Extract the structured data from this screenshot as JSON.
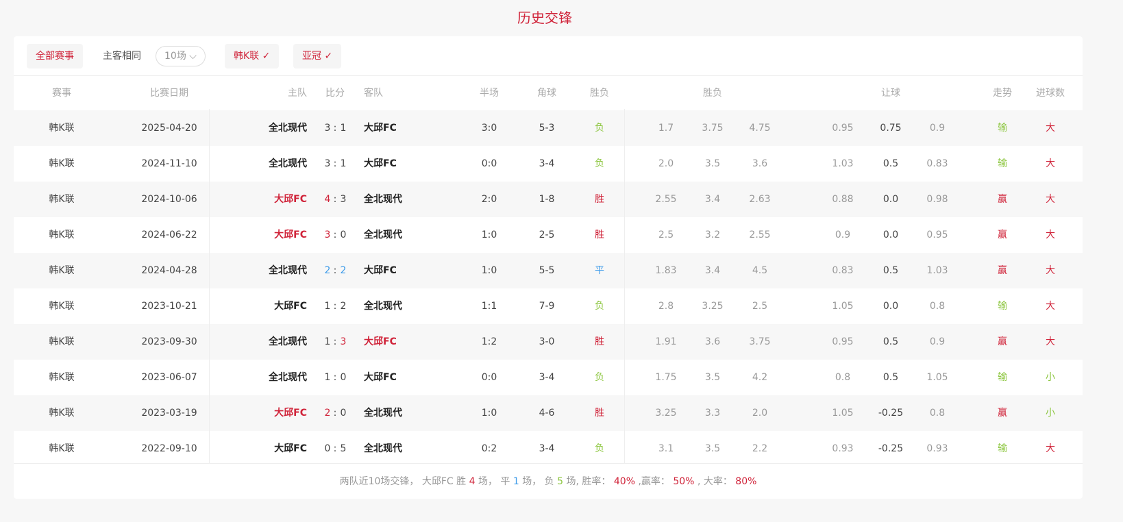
{
  "title": "历史交锋",
  "filters": {
    "all": "全部赛事",
    "same_home_away": "主客相同",
    "count_select": "10场",
    "league1": "韩K联 ✓",
    "league2": "亚冠 ✓"
  },
  "headers": {
    "league": "赛事",
    "date": "比赛日期",
    "home": "主队",
    "score": "比分",
    "away": "客队",
    "half": "半场",
    "corner": "角球",
    "result": "胜负",
    "odds_wdl": "胜负",
    "handicap": "让球",
    "trend": "走势",
    "goals": "进球数"
  },
  "colors": {
    "red": "#d0243a",
    "green": "#8cc63f",
    "blue": "#3d9be9"
  },
  "rows": [
    {
      "league": "韩K联",
      "date": "2025-04-20",
      "home": "全北现代",
      "hs": "3",
      "as": "1",
      "away": "大邱FC",
      "hl": "",
      "half": "3:0",
      "corner": "5-3",
      "result": "负",
      "rc": "green",
      "o1": "1.7",
      "o2": "3.75",
      "o3": "4.75",
      "h1": "0.95",
      "h2": "0.75",
      "h3": "0.9",
      "trend": "输",
      "tc": "green",
      "goals": "大",
      "gc": "red"
    },
    {
      "league": "韩K联",
      "date": "2024-11-10",
      "home": "全北现代",
      "hs": "3",
      "as": "1",
      "away": "大邱FC",
      "hl": "",
      "half": "0:0",
      "corner": "3-4",
      "result": "负",
      "rc": "green",
      "o1": "2.0",
      "o2": "3.5",
      "o3": "3.6",
      "h1": "1.03",
      "h2": "0.5",
      "h3": "0.83",
      "trend": "输",
      "tc": "green",
      "goals": "大",
      "gc": "red"
    },
    {
      "league": "韩K联",
      "date": "2024-10-06",
      "home": "大邱FC",
      "hs": "4",
      "as": "3",
      "away": "全北现代",
      "hl": "home",
      "half": "2:0",
      "corner": "1-8",
      "result": "胜",
      "rc": "red",
      "o1": "2.55",
      "o2": "3.4",
      "o3": "2.63",
      "h1": "0.88",
      "h2": "0.0",
      "h3": "0.98",
      "trend": "赢",
      "tc": "red",
      "goals": "大",
      "gc": "red"
    },
    {
      "league": "韩K联",
      "date": "2024-06-22",
      "home": "大邱FC",
      "hs": "3",
      "as": "0",
      "away": "全北现代",
      "hl": "home",
      "half": "1:0",
      "corner": "2-5",
      "result": "胜",
      "rc": "red",
      "o1": "2.5",
      "o2": "3.2",
      "o3": "2.55",
      "h1": "0.9",
      "h2": "0.0",
      "h3": "0.95",
      "trend": "赢",
      "tc": "red",
      "goals": "大",
      "gc": "red"
    },
    {
      "league": "韩K联",
      "date": "2024-04-28",
      "home": "全北现代",
      "hs": "2",
      "as": "2",
      "away": "大邱FC",
      "hl": "draw",
      "half": "1:0",
      "corner": "5-5",
      "result": "平",
      "rc": "blue",
      "o1": "1.83",
      "o2": "3.4",
      "o3": "4.5",
      "h1": "0.83",
      "h2": "0.5",
      "h3": "1.03",
      "trend": "赢",
      "tc": "red",
      "goals": "大",
      "gc": "red"
    },
    {
      "league": "韩K联",
      "date": "2023-10-21",
      "home": "大邱FC",
      "hs": "1",
      "as": "2",
      "away": "全北现代",
      "hl": "",
      "half": "1:1",
      "corner": "7-9",
      "result": "负",
      "rc": "green",
      "o1": "2.8",
      "o2": "3.25",
      "o3": "2.5",
      "h1": "1.05",
      "h2": "0.0",
      "h3": "0.8",
      "trend": "输",
      "tc": "green",
      "goals": "大",
      "gc": "red"
    },
    {
      "league": "韩K联",
      "date": "2023-09-30",
      "home": "全北现代",
      "hs": "1",
      "as": "3",
      "away": "大邱FC",
      "hl": "away",
      "half": "1:2",
      "corner": "3-0",
      "result": "胜",
      "rc": "red",
      "o1": "1.91",
      "o2": "3.6",
      "o3": "3.75",
      "h1": "0.95",
      "h2": "0.5",
      "h3": "0.9",
      "trend": "赢",
      "tc": "red",
      "goals": "大",
      "gc": "red"
    },
    {
      "league": "韩K联",
      "date": "2023-06-07",
      "home": "全北现代",
      "hs": "1",
      "as": "0",
      "away": "大邱FC",
      "hl": "",
      "half": "0:0",
      "corner": "3-4",
      "result": "负",
      "rc": "green",
      "o1": "1.75",
      "o2": "3.5",
      "o3": "4.2",
      "h1": "0.8",
      "h2": "0.5",
      "h3": "1.05",
      "trend": "输",
      "tc": "green",
      "goals": "小",
      "gc": "green"
    },
    {
      "league": "韩K联",
      "date": "2023-03-19",
      "home": "大邱FC",
      "hs": "2",
      "as": "0",
      "away": "全北现代",
      "hl": "home",
      "half": "1:0",
      "corner": "4-6",
      "result": "胜",
      "rc": "red",
      "o1": "3.25",
      "o2": "3.3",
      "o3": "2.0",
      "h1": "1.05",
      "h2": "-0.25",
      "h3": "0.8",
      "trend": "赢",
      "tc": "red",
      "goals": "小",
      "gc": "green"
    },
    {
      "league": "韩K联",
      "date": "2022-09-10",
      "home": "大邱FC",
      "hs": "0",
      "as": "5",
      "away": "全北现代",
      "hl": "",
      "half": "0:2",
      "corner": "3-4",
      "result": "负",
      "rc": "green",
      "o1": "3.1",
      "o2": "3.5",
      "o3": "2.2",
      "h1": "0.93",
      "h2": "-0.25",
      "h3": "0.93",
      "trend": "输",
      "tc": "green",
      "goals": "大",
      "gc": "red"
    }
  ],
  "footer": {
    "p1": "两队近10场交锋， 大邱FC 胜",
    "wins": "4",
    "p2": "场， 平",
    "draws": "1",
    "p3": "场， 负",
    "losses": "5",
    "p4": "场, 胜率：",
    "win_rate": "40%",
    "p5": ",赢率：",
    "cover_rate": "50%",
    "p6": ", 大率：",
    "over_rate": "80%"
  }
}
